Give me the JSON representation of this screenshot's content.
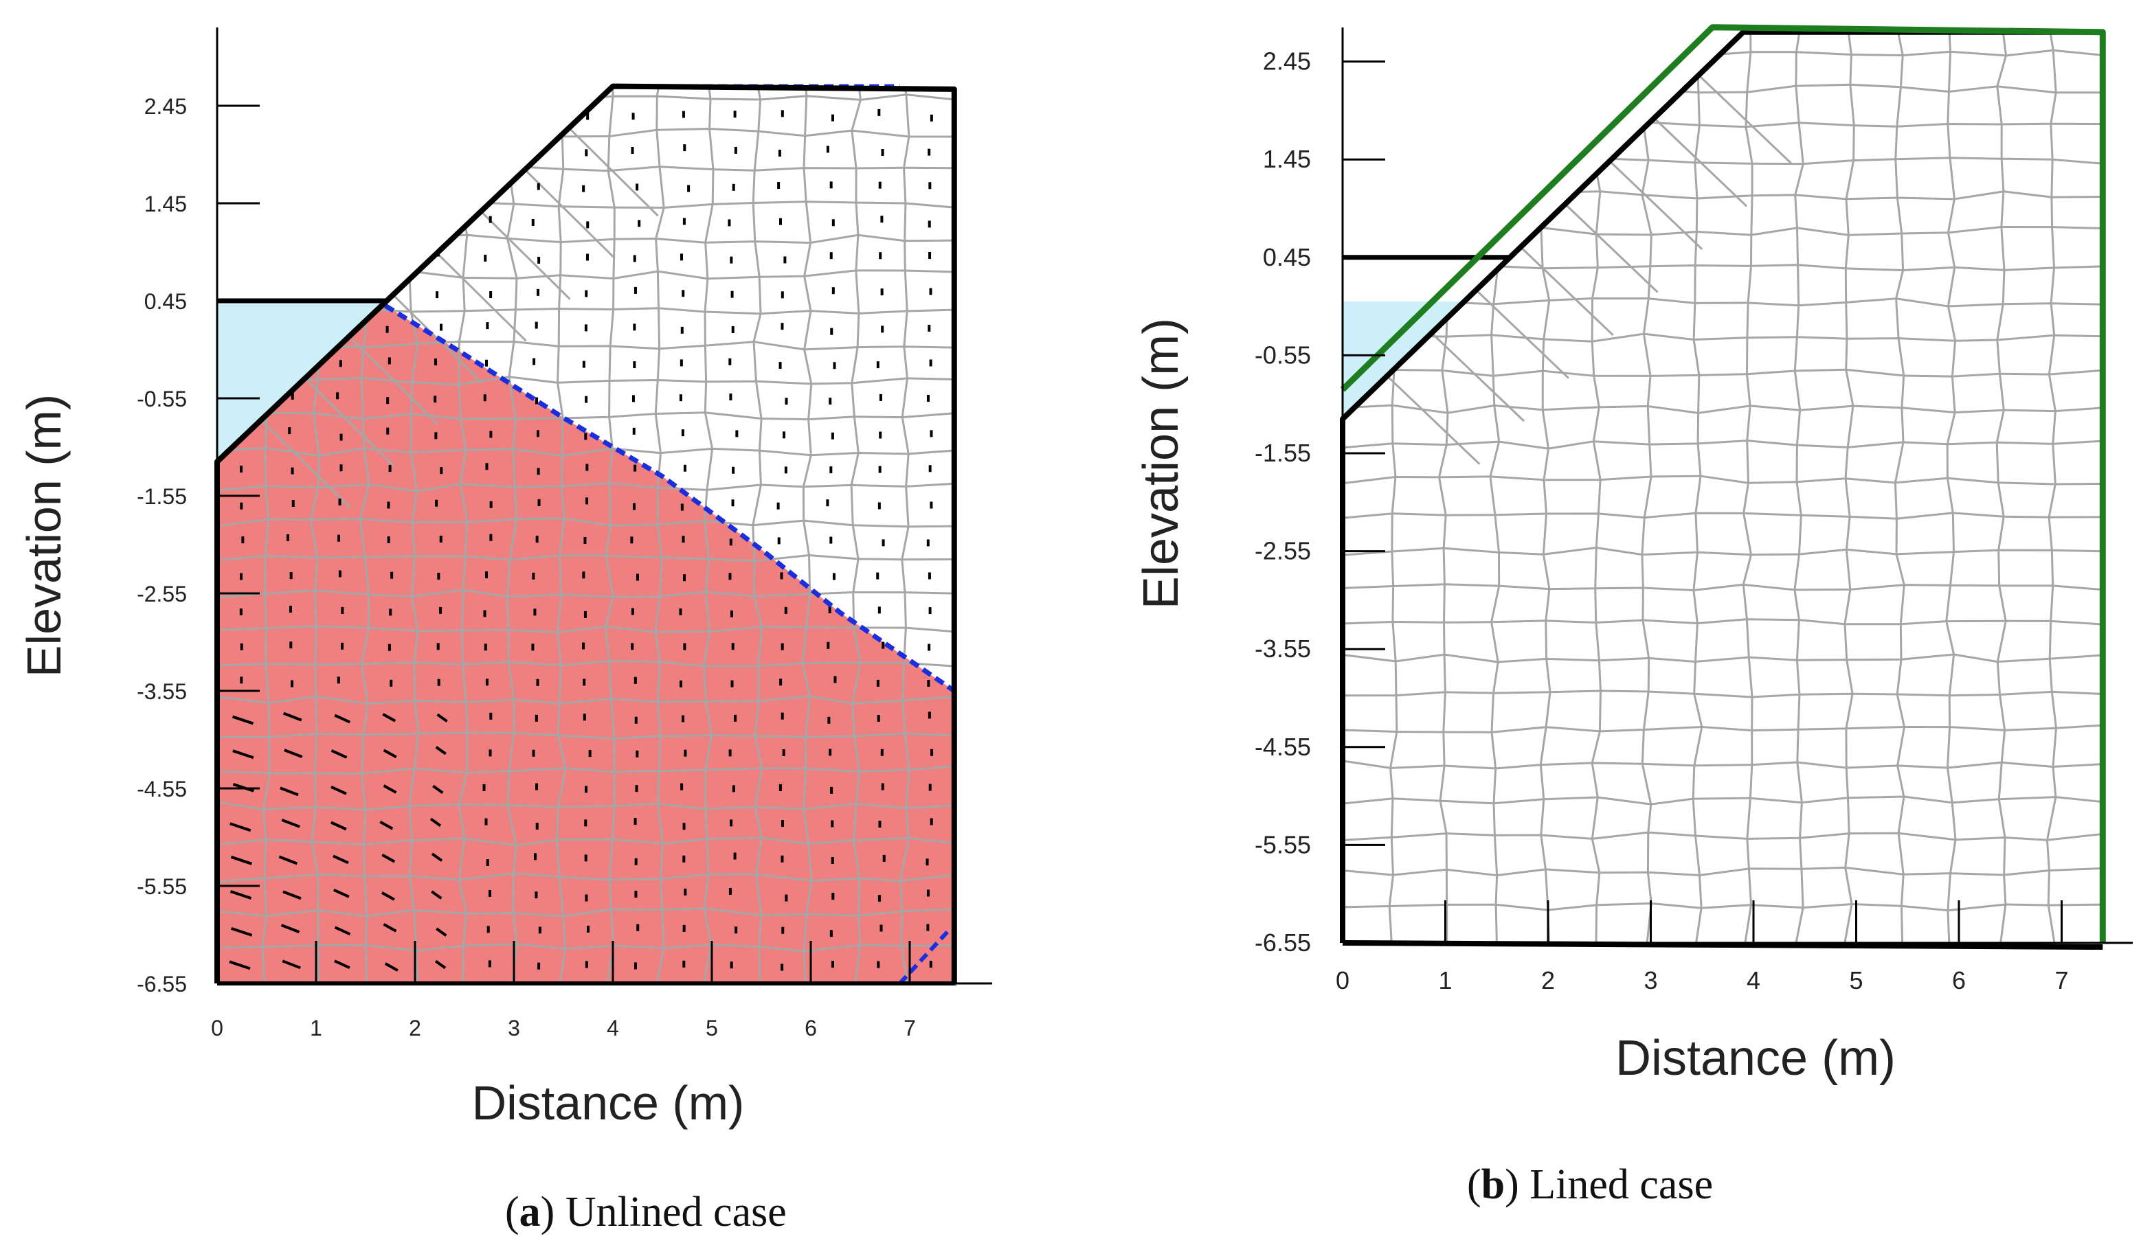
{
  "chart_data": [
    {
      "panel": "a",
      "type": "mesh",
      "caption": {
        "letter": "a",
        "text": "Unlined case"
      },
      "xlabel": "Distance (m)",
      "ylabel": "Elevation (m)",
      "xlim": [
        0,
        7.5
      ],
      "ylim": [
        -6.55,
        2.8
      ],
      "xticks": [
        "0",
        "1",
        "2",
        "3",
        "4",
        "5",
        "6",
        "7"
      ],
      "yticks": [
        "2.45",
        "1.45",
        "0.45",
        "-0.55",
        "-1.55",
        "-2.55",
        "-3.55",
        "-4.55",
        "-5.55",
        "-6.55"
      ],
      "boundary": [
        [
          0,
          -6.55
        ],
        [
          0,
          -1.2
        ],
        [
          4,
          2.65
        ],
        [
          7.45,
          2.62
        ],
        [
          7.45,
          -6.55
        ]
      ],
      "water": {
        "level": 0.45,
        "color": "#cdeff8"
      },
      "saturated_zone": {
        "color": "#f08080",
        "phreatic_line": [
          [
            1.7,
            0.4
          ],
          [
            2.5,
            -0.1
          ],
          [
            3.5,
            -0.75
          ],
          [
            4.5,
            -1.35
          ],
          [
            5.5,
            -2.1
          ],
          [
            6.3,
            -2.75
          ],
          [
            7.45,
            -3.55
          ]
        ]
      },
      "colors": {
        "boundary": "#000000",
        "mesh": "#a6a6a6",
        "phreatic": "#1a2ee0"
      }
    },
    {
      "panel": "b",
      "type": "mesh",
      "caption": {
        "letter": "b",
        "text": "Lined case"
      },
      "xlabel": "Distance (m)",
      "ylabel": "Elevation (m)",
      "xlim": [
        0,
        7.5
      ],
      "ylim": [
        -6.55,
        2.8
      ],
      "xticks": [
        "0",
        "1",
        "2",
        "3",
        "4",
        "5",
        "6",
        "7"
      ],
      "yticks": [
        "2.45",
        "1.45",
        "0.45",
        "-0.55",
        "-1.55",
        "-2.55",
        "-3.55",
        "-4.55",
        "-5.55",
        "-6.55"
      ],
      "boundary": [
        [
          0,
          -6.55
        ],
        [
          0,
          -1.2
        ],
        [
          3.9,
          2.75
        ],
        [
          7.4,
          2.75
        ],
        [
          7.4,
          -6.55
        ]
      ],
      "water": {
        "level": 0.45,
        "shade_top": 0.0,
        "color": "#cdeff8"
      },
      "liner": {
        "points": [
          [
            0,
            -0.9
          ],
          [
            3.6,
            2.8
          ],
          [
            7.4,
            2.75
          ],
          [
            7.4,
            -6.55
          ]
        ],
        "color": "#1e7d1e"
      },
      "colors": {
        "boundary": "#000000",
        "mesh": "#a6a6a6"
      }
    }
  ]
}
